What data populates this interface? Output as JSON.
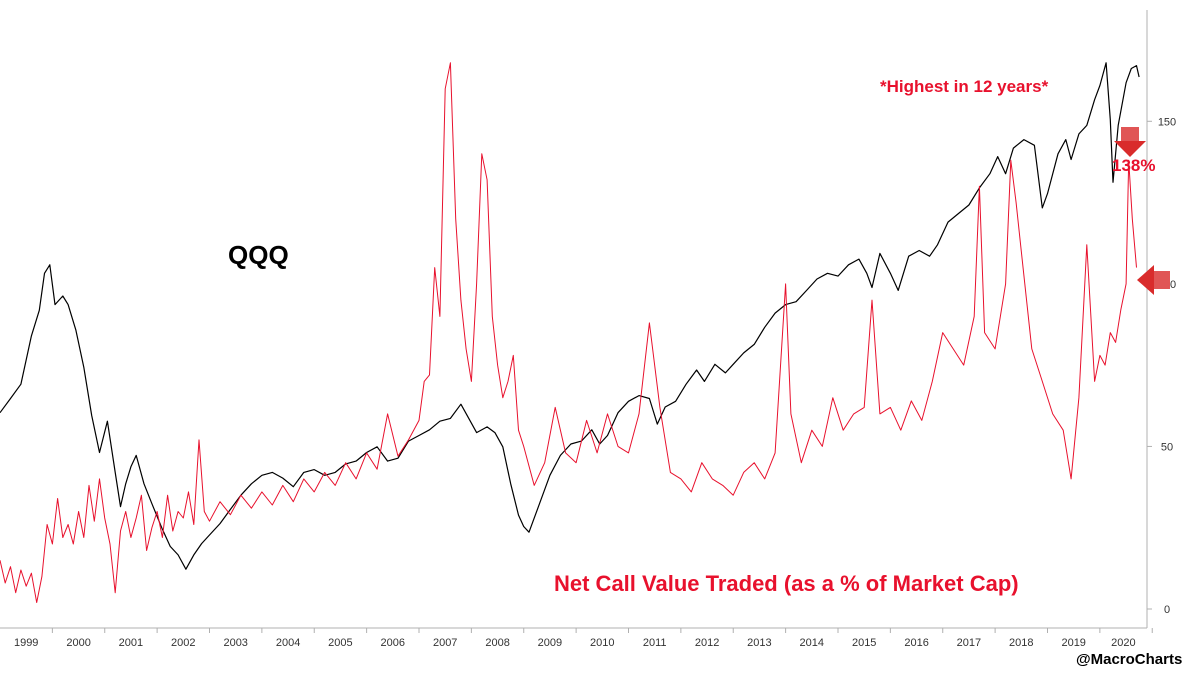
{
  "chart_data": {
    "type": "line",
    "title": "",
    "series": [
      {
        "name": "QQQ",
        "color": "#000000",
        "axis": "none",
        "points": [
          [
            1999.0,
            69
          ],
          [
            1999.2,
            74
          ],
          [
            1999.4,
            79
          ],
          [
            1999.6,
            96
          ],
          [
            1999.75,
            105
          ],
          [
            1999.85,
            118
          ],
          [
            1999.95,
            121
          ],
          [
            2000.05,
            107
          ],
          [
            2000.2,
            110
          ],
          [
            2000.3,
            107
          ],
          [
            2000.45,
            98
          ],
          [
            2000.6,
            85
          ],
          [
            2000.75,
            68
          ],
          [
            2000.9,
            55
          ],
          [
            2001.05,
            66
          ],
          [
            2001.2,
            48
          ],
          [
            2001.3,
            36
          ],
          [
            2001.4,
            44
          ],
          [
            2001.5,
            50
          ],
          [
            2001.6,
            54
          ],
          [
            2001.75,
            44
          ],
          [
            2001.9,
            37
          ],
          [
            2002.1,
            28
          ],
          [
            2002.25,
            22
          ],
          [
            2002.4,
            19
          ],
          [
            2002.55,
            14
          ],
          [
            2002.7,
            19
          ],
          [
            2002.85,
            23
          ],
          [
            2003.0,
            26
          ],
          [
            2003.2,
            30
          ],
          [
            2003.4,
            35
          ],
          [
            2003.6,
            40
          ],
          [
            2003.8,
            44
          ],
          [
            2004.0,
            47
          ],
          [
            2004.2,
            48
          ],
          [
            2004.4,
            46
          ],
          [
            2004.6,
            43
          ],
          [
            2004.8,
            48
          ],
          [
            2005.0,
            49
          ],
          [
            2005.2,
            47
          ],
          [
            2005.4,
            48
          ],
          [
            2005.6,
            51
          ],
          [
            2005.8,
            52
          ],
          [
            2006.0,
            55
          ],
          [
            2006.2,
            57
          ],
          [
            2006.4,
            52
          ],
          [
            2006.6,
            53
          ],
          [
            2006.8,
            59
          ],
          [
            2007.0,
            61
          ],
          [
            2007.2,
            63
          ],
          [
            2007.4,
            66
          ],
          [
            2007.6,
            67
          ],
          [
            2007.8,
            72
          ],
          [
            2007.95,
            67
          ],
          [
            2008.1,
            62
          ],
          [
            2008.3,
            64
          ],
          [
            2008.45,
            62
          ],
          [
            2008.6,
            57
          ],
          [
            2008.75,
            44
          ],
          [
            2008.9,
            33
          ],
          [
            2009.0,
            29
          ],
          [
            2009.1,
            27
          ],
          [
            2009.3,
            37
          ],
          [
            2009.5,
            47
          ],
          [
            2009.7,
            54
          ],
          [
            2009.9,
            58
          ],
          [
            2010.1,
            59
          ],
          [
            2010.3,
            63
          ],
          [
            2010.45,
            58
          ],
          [
            2010.6,
            61
          ],
          [
            2010.8,
            69
          ],
          [
            2011.0,
            73
          ],
          [
            2011.2,
            75
          ],
          [
            2011.4,
            74
          ],
          [
            2011.55,
            65
          ],
          [
            2011.7,
            71
          ],
          [
            2011.9,
            73
          ],
          [
            2012.1,
            79
          ],
          [
            2012.3,
            84
          ],
          [
            2012.45,
            80
          ],
          [
            2012.65,
            86
          ],
          [
            2012.85,
            83
          ],
          [
            2013.0,
            86
          ],
          [
            2013.2,
            90
          ],
          [
            2013.4,
            93
          ],
          [
            2013.6,
            99
          ],
          [
            2013.8,
            104
          ],
          [
            2014.0,
            107
          ],
          [
            2014.2,
            108
          ],
          [
            2014.4,
            112
          ],
          [
            2014.6,
            116
          ],
          [
            2014.8,
            118
          ],
          [
            2015.0,
            117
          ],
          [
            2015.2,
            121
          ],
          [
            2015.4,
            123
          ],
          [
            2015.55,
            118
          ],
          [
            2015.65,
            113
          ],
          [
            2015.8,
            125
          ],
          [
            2016.0,
            118
          ],
          [
            2016.15,
            112
          ],
          [
            2016.35,
            124
          ],
          [
            2016.55,
            126
          ],
          [
            2016.75,
            124
          ],
          [
            2016.9,
            128
          ],
          [
            2017.1,
            136
          ],
          [
            2017.3,
            139
          ],
          [
            2017.5,
            142
          ],
          [
            2017.7,
            148
          ],
          [
            2017.9,
            153
          ],
          [
            2018.05,
            159
          ],
          [
            2018.2,
            153
          ],
          [
            2018.35,
            162
          ],
          [
            2018.55,
            165
          ],
          [
            2018.75,
            163
          ],
          [
            2018.9,
            141
          ],
          [
            2019.0,
            146
          ],
          [
            2019.2,
            160
          ],
          [
            2019.35,
            165
          ],
          [
            2019.45,
            158
          ],
          [
            2019.6,
            167
          ],
          [
            2019.75,
            170
          ],
          [
            2019.9,
            179
          ],
          [
            2020.0,
            184
          ],
          [
            2020.12,
            192
          ],
          [
            2020.2,
            172
          ],
          [
            2020.25,
            150
          ],
          [
            2020.35,
            170
          ],
          [
            2020.5,
            185
          ],
          [
            2020.6,
            190
          ],
          [
            2020.7,
            191
          ],
          [
            2020.75,
            187
          ]
        ]
      },
      {
        "name": "Net Call Value Traded (as a % of Market Cap)",
        "color": "#e8112d",
        "axis": "right",
        "points": [
          [
            1999.0,
            15
          ],
          [
            1999.1,
            8
          ],
          [
            1999.2,
            13
          ],
          [
            1999.3,
            5
          ],
          [
            1999.4,
            12
          ],
          [
            1999.5,
            7
          ],
          [
            1999.6,
            11
          ],
          [
            1999.7,
            2
          ],
          [
            1999.8,
            10
          ],
          [
            1999.9,
            26
          ],
          [
            2000.0,
            20
          ],
          [
            2000.1,
            34
          ],
          [
            2000.2,
            22
          ],
          [
            2000.3,
            26
          ],
          [
            2000.4,
            20
          ],
          [
            2000.5,
            30
          ],
          [
            2000.6,
            22
          ],
          [
            2000.7,
            38
          ],
          [
            2000.8,
            27
          ],
          [
            2000.9,
            40
          ],
          [
            2001.0,
            28
          ],
          [
            2001.1,
            20
          ],
          [
            2001.2,
            5
          ],
          [
            2001.3,
            24
          ],
          [
            2001.4,
            30
          ],
          [
            2001.5,
            22
          ],
          [
            2001.6,
            28
          ],
          [
            2001.7,
            35
          ],
          [
            2001.8,
            18
          ],
          [
            2001.9,
            25
          ],
          [
            2002.0,
            30
          ],
          [
            2002.1,
            22
          ],
          [
            2002.2,
            35
          ],
          [
            2002.3,
            24
          ],
          [
            2002.4,
            30
          ],
          [
            2002.5,
            28
          ],
          [
            2002.6,
            36
          ],
          [
            2002.7,
            26
          ],
          [
            2002.8,
            52
          ],
          [
            2002.9,
            30
          ],
          [
            2003.0,
            27
          ],
          [
            2003.2,
            33
          ],
          [
            2003.4,
            29
          ],
          [
            2003.6,
            35
          ],
          [
            2003.8,
            31
          ],
          [
            2004.0,
            36
          ],
          [
            2004.2,
            32
          ],
          [
            2004.4,
            38
          ],
          [
            2004.6,
            33
          ],
          [
            2004.8,
            40
          ],
          [
            2005.0,
            36
          ],
          [
            2005.2,
            42
          ],
          [
            2005.4,
            38
          ],
          [
            2005.6,
            45
          ],
          [
            2005.8,
            40
          ],
          [
            2006.0,
            48
          ],
          [
            2006.2,
            43
          ],
          [
            2006.4,
            60
          ],
          [
            2006.6,
            47
          ],
          [
            2006.8,
            52
          ],
          [
            2007.0,
            58
          ],
          [
            2007.1,
            70
          ],
          [
            2007.2,
            72
          ],
          [
            2007.3,
            105
          ],
          [
            2007.4,
            90
          ],
          [
            2007.5,
            160
          ],
          [
            2007.6,
            168
          ],
          [
            2007.7,
            120
          ],
          [
            2007.8,
            95
          ],
          [
            2007.9,
            80
          ],
          [
            2008.0,
            70
          ],
          [
            2008.1,
            100
          ],
          [
            2008.2,
            140
          ],
          [
            2008.3,
            132
          ],
          [
            2008.4,
            90
          ],
          [
            2008.5,
            75
          ],
          [
            2008.6,
            65
          ],
          [
            2008.7,
            70
          ],
          [
            2008.8,
            78
          ],
          [
            2008.9,
            55
          ],
          [
            2009.0,
            50
          ],
          [
            2009.2,
            38
          ],
          [
            2009.4,
            45
          ],
          [
            2009.6,
            62
          ],
          [
            2009.8,
            48
          ],
          [
            2010.0,
            45
          ],
          [
            2010.2,
            58
          ],
          [
            2010.4,
            48
          ],
          [
            2010.6,
            60
          ],
          [
            2010.8,
            50
          ],
          [
            2011.0,
            48
          ],
          [
            2011.2,
            60
          ],
          [
            2011.4,
            88
          ],
          [
            2011.6,
            62
          ],
          [
            2011.8,
            42
          ],
          [
            2012.0,
            40
          ],
          [
            2012.2,
            36
          ],
          [
            2012.4,
            45
          ],
          [
            2012.6,
            40
          ],
          [
            2012.8,
            38
          ],
          [
            2013.0,
            35
          ],
          [
            2013.2,
            42
          ],
          [
            2013.4,
            45
          ],
          [
            2013.6,
            40
          ],
          [
            2013.8,
            48
          ],
          [
            2014.0,
            100
          ],
          [
            2014.1,
            60
          ],
          [
            2014.3,
            45
          ],
          [
            2014.5,
            55
          ],
          [
            2014.7,
            50
          ],
          [
            2014.9,
            65
          ],
          [
            2015.1,
            55
          ],
          [
            2015.3,
            60
          ],
          [
            2015.5,
            62
          ],
          [
            2015.65,
            95
          ],
          [
            2015.8,
            60
          ],
          [
            2016.0,
            62
          ],
          [
            2016.2,
            55
          ],
          [
            2016.4,
            64
          ],
          [
            2016.6,
            58
          ],
          [
            2016.8,
            70
          ],
          [
            2017.0,
            85
          ],
          [
            2017.2,
            80
          ],
          [
            2017.4,
            75
          ],
          [
            2017.6,
            90
          ],
          [
            2017.7,
            130
          ],
          [
            2017.8,
            85
          ],
          [
            2018.0,
            80
          ],
          [
            2018.2,
            100
          ],
          [
            2018.3,
            138
          ],
          [
            2018.4,
            125
          ],
          [
            2018.5,
            110
          ],
          [
            2018.7,
            80
          ],
          [
            2018.9,
            70
          ],
          [
            2019.1,
            60
          ],
          [
            2019.3,
            55
          ],
          [
            2019.45,
            40
          ],
          [
            2019.6,
            65
          ],
          [
            2019.75,
            112
          ],
          [
            2019.9,
            70
          ],
          [
            2020.0,
            78
          ],
          [
            2020.1,
            75
          ],
          [
            2020.2,
            85
          ],
          [
            2020.3,
            82
          ],
          [
            2020.4,
            92
          ],
          [
            2020.5,
            100
          ],
          [
            2020.55,
            138
          ],
          [
            2020.62,
            120
          ],
          [
            2020.7,
            105
          ]
        ]
      }
    ],
    "x_ticks": [
      "1999",
      "2000",
      "2001",
      "2002",
      "2003",
      "2004",
      "2005",
      "2006",
      "2007",
      "2008",
      "2009",
      "2010",
      "2011",
      "2012",
      "2013",
      "2014",
      "2015",
      "2016",
      "2017",
      "2018",
      "2019",
      "2020"
    ],
    "y_ticks": [
      "0",
      "50",
      "100",
      "150"
    ],
    "y_tick_values": [
      0,
      50,
      100,
      150
    ],
    "xlim": [
      1999,
      2020.9
    ],
    "ylim_right": [
      0,
      175
    ],
    "ylim_qqq": [
      0,
      200
    ],
    "grid": false,
    "annotations": {
      "qqq_label": "QQQ",
      "series_label": "Net Call Value Traded (as a % of Market Cap)",
      "note": "*Highest in 12 years*",
      "callout_value": "138%",
      "credit": "@MacroCharts"
    },
    "colors": {
      "qqq_line": "#000000",
      "call_line": "#e8112d",
      "accent_text": "#e8112d",
      "arrow": "#d92b2b"
    }
  }
}
